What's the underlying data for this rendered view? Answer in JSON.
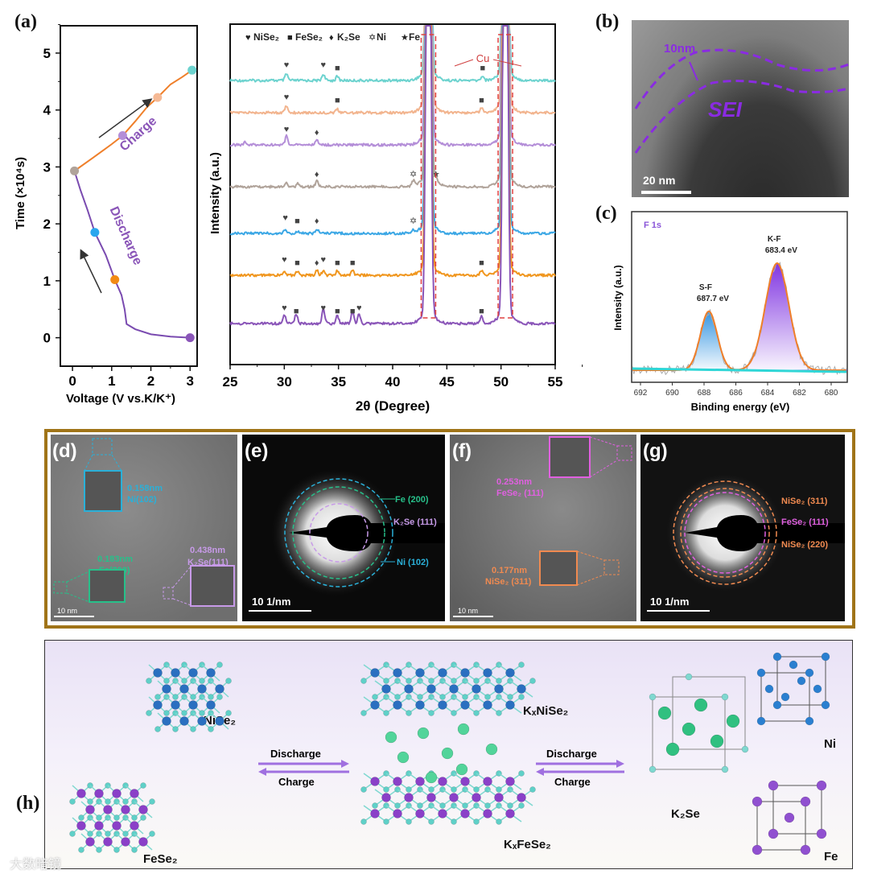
{
  "panel_labels": {
    "a": "(a)",
    "b": "(b)",
    "c": "(c)",
    "d": "(d)",
    "e": "(e)",
    "f": "(f)",
    "g": "(g)",
    "h": "(h)"
  },
  "chart_data": [
    {
      "id": "a",
      "type": "line",
      "xlabel": "Voltage (V vs.K/K⁺)",
      "ylabel": "Time (×10⁴s)",
      "xlim": [
        -0.31,
        3.18
      ],
      "ylim": [
        -0.5,
        5.48
      ],
      "xticks": [
        "0",
        "1",
        "2",
        "3"
      ],
      "yticks": [
        "0",
        "1",
        "2",
        "3",
        "4",
        "5"
      ],
      "series": [
        {
          "name": "Discharge",
          "color": "#7a4bb0",
          "x": [
            3.0,
            2.5,
            2.0,
            1.6,
            1.38,
            1.33,
            1.25,
            1.08,
            0.85,
            0.57,
            0.38,
            0.2,
            0.05
          ],
          "y": [
            0,
            0.02,
            0.06,
            0.15,
            0.24,
            0.5,
            0.75,
            1.02,
            1.45,
            1.85,
            2.25,
            2.6,
            2.93
          ]
        },
        {
          "name": "Charge",
          "color": "#ef7f2a",
          "x": [
            0.05,
            0.5,
            1.0,
            1.28,
            1.6,
            1.9,
            2.17,
            2.5,
            2.8,
            3.05
          ],
          "y": [
            2.93,
            3.15,
            3.4,
            3.55,
            3.8,
            4.05,
            4.22,
            4.45,
            4.58,
            4.7
          ]
        }
      ],
      "markers": [
        {
          "x": 3.0,
          "y": 0,
          "color": "#8a55b8"
        },
        {
          "x": 1.08,
          "y": 1.02,
          "color": "#f28a14"
        },
        {
          "x": 0.57,
          "y": 1.85,
          "color": "#2aa6ee"
        },
        {
          "x": 0.05,
          "y": 2.93,
          "color": "#b0a39a"
        },
        {
          "x": 1.28,
          "y": 3.55,
          "color": "#b48ed8"
        },
        {
          "x": 2.17,
          "y": 4.22,
          "color": "#f5b995"
        },
        {
          "x": 3.05,
          "y": 4.7,
          "color": "#6dd3cf"
        }
      ],
      "annotations": {
        "charge": "Charge",
        "discharge": "Discharge"
      }
    },
    {
      "id": "xrd",
      "type": "line",
      "xlabel": "2θ (Degree)",
      "ylabel": "Intensity (a.u.)",
      "xlim": [
        25,
        55
      ],
      "xticks": [
        "25",
        "30",
        "35",
        "40",
        "45",
        "50",
        "55"
      ],
      "legend": [
        {
          "symbol": "♥",
          "label": "NiSe₂"
        },
        {
          "symbol": "■",
          "label": "FeSe₂"
        },
        {
          "symbol": "♦",
          "label": "K₂Se"
        },
        {
          "symbol": "✡",
          "label": "Ni"
        },
        {
          "symbol": "★",
          "label": "Fe"
        }
      ],
      "cu_label": "Cu",
      "cu_peaks": [
        43.3,
        50.4
      ],
      "series": [
        {
          "color": "#6dd3cf",
          "peaks": [
            [
              30.2,
              0.4
            ],
            [
              33.6,
              0.4
            ],
            [
              34.9,
              0.25
            ],
            [
              48.3,
              0.3
            ]
          ],
          "marks": [
            [
              "♥",
              30.2
            ],
            [
              "♥",
              33.6
            ],
            [
              "■",
              34.9
            ],
            [
              "■",
              48.3
            ]
          ]
        },
        {
          "color": "#f2b48e",
          "peaks": [
            [
              30.2,
              0.45
            ],
            [
              34.9,
              0.2
            ],
            [
              48.2,
              0.35
            ]
          ],
          "marks": [
            [
              "♥",
              30.2
            ],
            [
              "■",
              34.9
            ],
            [
              "■",
              48.2
            ]
          ]
        },
        {
          "color": "#b48ed8",
          "peaks": [
            [
              26.4,
              0.2
            ],
            [
              30.2,
              0.55
            ],
            [
              33.0,
              0.3
            ]
          ],
          "marks": [
            [
              "♥",
              30.2
            ],
            [
              "♦",
              33.0
            ]
          ]
        },
        {
          "color": "#b0a39a",
          "peaks": [
            [
              30.2,
              0.3
            ],
            [
              31.3,
              0.2
            ],
            [
              33.0,
              0.35
            ],
            [
              41.9,
              0.35
            ],
            [
              44.0,
              0.25
            ]
          ],
          "marks": [
            [
              "♦",
              33.0
            ],
            [
              "✡",
              41.9
            ],
            [
              "★",
              44.0
            ]
          ]
        },
        {
          "color": "#3ba7e5",
          "peaks": [
            [
              30.1,
              0.3
            ],
            [
              31.2,
              0.15
            ],
            [
              33.0,
              0.3
            ],
            [
              41.9,
              0.15
            ]
          ],
          "marks": [
            [
              "♥",
              30.1
            ],
            [
              "■",
              31.2
            ],
            [
              "♦",
              33.0
            ],
            [
              "✡",
              41.9
            ]
          ]
        },
        {
          "color": "#f0961e",
          "peaks": [
            [
              30.0,
              0.3
            ],
            [
              31.2,
              0.25
            ],
            [
              33.0,
              0.3
            ],
            [
              33.6,
              0.3
            ],
            [
              34.9,
              0.3
            ],
            [
              36.3,
              0.3
            ],
            [
              48.2,
              0.3
            ]
          ],
          "marks": [
            [
              "♥",
              30.0
            ],
            [
              "■",
              31.2
            ],
            [
              "♦",
              33.0
            ],
            [
              "♥",
              33.6
            ],
            [
              "■",
              34.9
            ],
            [
              "■",
              36.3
            ],
            [
              "■",
              48.2
            ]
          ]
        },
        {
          "color": "#8a55b8",
          "peaks": [
            [
              30.0,
              0.55
            ],
            [
              31.1,
              0.6
            ],
            [
              33.6,
              0.9
            ],
            [
              34.9,
              0.5
            ],
            [
              36.3,
              0.7
            ],
            [
              36.9,
              0.6
            ],
            [
              48.2,
              0.5
            ]
          ],
          "marks": [
            [
              "♥",
              30.0
            ],
            [
              "■",
              31.1
            ],
            [
              "♥",
              33.6
            ],
            [
              "■",
              34.9
            ],
            [
              "■",
              36.3
            ],
            [
              "♥",
              36.9
            ],
            [
              "■",
              48.2
            ]
          ]
        }
      ]
    },
    {
      "id": "c",
      "type": "area",
      "title": "F 1s",
      "xlabel": "Binding energy (eV)",
      "ylabel": "Intensity (a.u.)",
      "xlim": [
        692.5,
        679
      ],
      "xticks": [
        "692",
        "690",
        "688",
        "686",
        "684",
        "682",
        "680"
      ],
      "peaks": [
        {
          "name": "S-F",
          "center": 687.7,
          "height": 0.55,
          "width": 0.75,
          "label": "S-F",
          "value": "687.7 eV",
          "color": "#2a8fe0"
        },
        {
          "name": "K-F",
          "center": 683.4,
          "height": 1.0,
          "width": 1.05,
          "label": "K-F",
          "value": "683.4 eV",
          "color": "#7a2be0"
        }
      ],
      "envelope_color": "#ef7f2a",
      "background_color": "#2fd6d6"
    }
  ],
  "panel_b": {
    "thickness": "10nm",
    "sei": "SEI",
    "scale": "20 nm"
  },
  "panel_d": {
    "ni": [
      "0.158nm",
      "Ni(102)"
    ],
    "fe": [
      "0.183nm",
      "Fe(200)"
    ],
    "k2se": [
      "0.438nm",
      "K₂Se(111)"
    ],
    "scale": "10 nm"
  },
  "panel_e": {
    "rings": [
      "Fe (200)",
      "K₂Se (111)",
      "Ni (102)"
    ],
    "scale": "10 1/nm"
  },
  "panel_f": {
    "fese2": [
      "0.253nm",
      "FeSe₂ (111)"
    ],
    "nise2": [
      "0.177nm",
      "NiSe₂ (311)"
    ],
    "scale": "10 nm"
  },
  "panel_g": {
    "rings": [
      "NiSe₂ (311)",
      "FeSe₂ (111)",
      "NiSe₂ (220)"
    ],
    "scale": "10 1/nm"
  },
  "panel_h": {
    "nise2": "NiSe₂",
    "fese2": "FeSe₂",
    "kxnise2": "KₓNiSe₂",
    "kxfese2": "KₓFeSe₂",
    "k2se": "K₂Se",
    "ni": "Ni",
    "fe": "Fe",
    "arrow1": {
      "top": "Discharge",
      "bottom": "Charge"
    },
    "arrow2": {
      "top": "Discharge",
      "bottom": "Charge"
    }
  },
  "watermark": "大数暗镜"
}
